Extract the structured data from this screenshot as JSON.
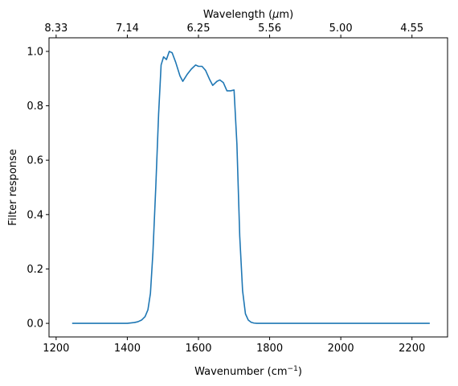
{
  "chart_data": {
    "type": "line",
    "xlabel": "Wavenumber (cm⁻¹)",
    "ylabel": "Filter response",
    "top_xlabel": "Wavelength (μm)",
    "xlim": [
      1180,
      2300
    ],
    "ylim": [
      -0.05,
      1.05
    ],
    "x_ticks": [
      1200,
      1400,
      1600,
      1800,
      2000,
      2200
    ],
    "y_ticks": [
      0.0,
      0.2,
      0.4,
      0.6,
      0.8,
      1.0
    ],
    "x_tick_labels": [
      "1200",
      "1400",
      "1600",
      "1800",
      "2000",
      "2200"
    ],
    "y_tick_labels": [
      "0.0",
      "0.2",
      "0.4",
      "0.6",
      "0.8",
      "1.0"
    ],
    "top_ticks": [
      1200,
      1400,
      1600,
      1800,
      2000,
      2200
    ],
    "top_tick_labels": [
      "8.33",
      "7.14",
      "6.25",
      "5.56",
      "5.00",
      "4.55"
    ],
    "grid": false,
    "line_color": "#1f77b4",
    "series": [
      {
        "x": [
          1245,
          1300,
          1350,
          1380,
          1400,
          1420,
          1430,
          1440,
          1450,
          1458,
          1465,
          1472,
          1480,
          1488,
          1495,
          1502,
          1510,
          1518,
          1526,
          1536,
          1548,
          1556,
          1568,
          1580,
          1592,
          1600,
          1610,
          1620,
          1632,
          1640,
          1652,
          1660,
          1670,
          1680,
          1690,
          1700,
          1708,
          1716,
          1724,
          1732,
          1740,
          1748,
          1756,
          1764,
          1775,
          1800,
          1900,
          2000,
          2100,
          2250
        ],
        "y": [
          0.0,
          0.0,
          0.0,
          0.0,
          0.0,
          0.003,
          0.006,
          0.012,
          0.025,
          0.05,
          0.11,
          0.26,
          0.5,
          0.77,
          0.95,
          0.98,
          0.97,
          1.0,
          0.995,
          0.96,
          0.91,
          0.89,
          0.915,
          0.935,
          0.95,
          0.945,
          0.945,
          0.93,
          0.895,
          0.875,
          0.89,
          0.895,
          0.885,
          0.855,
          0.855,
          0.858,
          0.66,
          0.32,
          0.12,
          0.035,
          0.012,
          0.004,
          0.001,
          0.0,
          0.0,
          0.0,
          0.0,
          0.0,
          0.0,
          0.0
        ]
      }
    ]
  }
}
